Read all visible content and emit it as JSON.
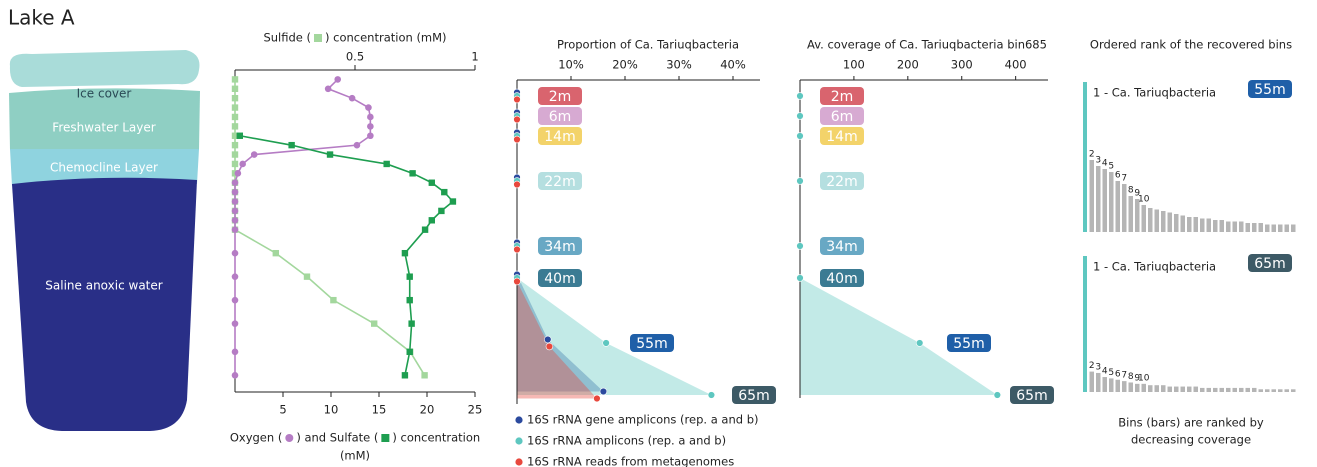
{
  "lake": {
    "title": "Lake A",
    "layers": [
      "Ice cover",
      "Freshwater Layer",
      "Chemocline Layer",
      "Saline anoxic water"
    ]
  },
  "chart_data": [
    {
      "type": "line",
      "x2label": [
        "Sulfide (",
        ") concentration (mM)"
      ],
      "xlabel": [
        "Oxygen (",
        ") and Sulfate (",
        ") concentration"
      ],
      "xlabel2": "(mM)",
      "y": [
        2,
        4,
        6,
        8,
        10,
        12,
        14,
        16,
        18,
        20,
        22,
        24,
        26,
        28,
        30,
        32,
        34,
        39,
        44,
        49,
        54,
        60,
        65
      ],
      "ylim": [
        0,
        66
      ],
      "xlim": [
        0,
        25
      ],
      "xticks": [
        5,
        10,
        15,
        20,
        25
      ],
      "x2lim": [
        0,
        1
      ],
      "x2ticks": [
        0.5,
        1
      ],
      "series": [
        {
          "axis": "x2",
          "color": "#a3d79d",
          "marker": "square",
          "values": [
            0,
            0,
            0,
            0,
            0,
            0,
            0,
            0,
            0,
            0,
            0,
            0,
            0,
            0,
            0,
            0,
            0,
            0.17,
            0.3,
            0.41,
            0.58,
            0.73,
            0.79
          ]
        },
        {
          "color": "#b57cc4",
          "marker": "circle",
          "values": [
            10.7,
            9.7,
            12.2,
            13.9,
            14.1,
            14.1,
            14.1,
            12.7,
            2.0,
            0.8,
            0.3,
            0,
            0,
            0,
            0,
            0,
            0,
            0,
            0,
            0,
            0,
            0,
            0
          ]
        },
        {
          "color": "#1e9e50",
          "marker": "square",
          "values": [
            null,
            null,
            null,
            null,
            null,
            null,
            0.5,
            5.9,
            9.9,
            15.8,
            18.5,
            20.5,
            21.8,
            22.7,
            21.5,
            20.5,
            19.8,
            17.7,
            18.2,
            18.2,
            18.4,
            18.2,
            17.7
          ]
        }
      ]
    },
    {
      "type": "area",
      "title": "Proportion of Ca. Tariuqbacteria",
      "categories": [
        "2m",
        "6m",
        "14m",
        "22m",
        "34m",
        "40m",
        "55m",
        "65m"
      ],
      "category_colors": [
        "#d9646e",
        "#d7aad2",
        "#f3d36a",
        "#b5dfe0",
        "#68a8c4",
        "#3b7b93",
        "#1f5fa8",
        "#3d5a66"
      ],
      "xlim": [
        0,
        45
      ],
      "xticks": [
        {
          "value": 10,
          "label": "10%"
        },
        {
          "value": 20,
          "label": "20%"
        },
        {
          "value": 30,
          "label": "30%"
        },
        {
          "value": 40,
          "label": "40%"
        }
      ],
      "series": [
        {
          "name": "16S rRNA gene amplicons (rep. a and b)",
          "color": "#2b4a9e",
          "values": [
            0,
            0,
            0,
            0,
            0,
            0,
            5.7,
            16
          ]
        },
        {
          "name": "16S rRNA amplicons (rep. a and b)",
          "color": "#5ec7c0",
          "values": [
            0,
            0,
            0,
            0,
            0,
            0,
            16.5,
            36
          ]
        },
        {
          "name": "16S rRNA reads from metagenomes",
          "color": "#e8483d",
          "values": [
            0,
            0,
            0,
            0,
            0,
            0,
            6,
            14.8
          ]
        }
      ]
    },
    {
      "type": "area",
      "title": "Av. coverage of Ca. Tariuqbacteria bin685",
      "categories": [
        "2m",
        "6m",
        "14m",
        "22m",
        "34m",
        "40m",
        "55m",
        "65m"
      ],
      "category_colors": [
        "#d9646e",
        "#d7aad2",
        "#f3d36a",
        "#b5dfe0",
        "#68a8c4",
        "#3b7b93",
        "#1f5fa8",
        "#3d5a66"
      ],
      "xlim": [
        0,
        460
      ],
      "xticks": [
        100,
        200,
        300,
        400
      ],
      "series": [
        {
          "color": "#5ec7c0",
          "values": [
            0,
            0,
            0,
            0,
            0,
            0,
            222,
            366
          ]
        }
      ]
    },
    {
      "type": "bar",
      "title": "Ordered rank of the recovered bins",
      "badge": "55m",
      "badge_color": "#1f5fa8",
      "categories": [
        "1 - Ca. Tariuqbacteria",
        "2",
        "3",
        "4",
        "5",
        "6",
        "7",
        "8",
        "9",
        "10",
        null,
        null,
        null,
        null,
        null,
        null,
        null,
        null,
        null,
        null,
        null,
        null,
        null,
        null,
        null,
        null,
        null,
        null,
        null,
        null,
        null,
        null,
        null
      ],
      "values": [
        100,
        48,
        44,
        42,
        40,
        34,
        32,
        24,
        22,
        18,
        16,
        15,
        14,
        13,
        12,
        11,
        10,
        10,
        9,
        9,
        8,
        8,
        7,
        7,
        7,
        6,
        6,
        6,
        5,
        5,
        5,
        5,
        5
      ],
      "ylim": [
        0,
        100
      ],
      "highlight_color": "#5ec7c0",
      "color": "#b5b5b5"
    },
    {
      "type": "bar",
      "badge": "65m",
      "badge_color": "#3d5a66",
      "note": [
        "Bins (bars) are ranked by",
        "decreasing coverage"
      ],
      "categories": [
        "1 - Ca. Tariuqbacteria",
        "2",
        "3",
        "4",
        "5",
        "6",
        "7",
        "8",
        "9",
        "10",
        null,
        null,
        null,
        null,
        null,
        null,
        null,
        null,
        null,
        null,
        null,
        null,
        null,
        null,
        null,
        null,
        null,
        null,
        null,
        null,
        null,
        null,
        null
      ],
      "values": [
        100,
        15,
        14,
        11,
        10,
        9,
        8,
        7,
        6,
        6,
        5,
        5,
        5,
        4,
        4,
        4,
        4,
        4,
        3,
        3,
        3,
        3,
        3,
        3,
        3,
        3,
        3,
        2,
        2,
        2,
        2,
        2,
        2
      ],
      "ylim": [
        0,
        100
      ],
      "highlight_color": "#5ec7c0",
      "color": "#b5b5b5"
    }
  ]
}
